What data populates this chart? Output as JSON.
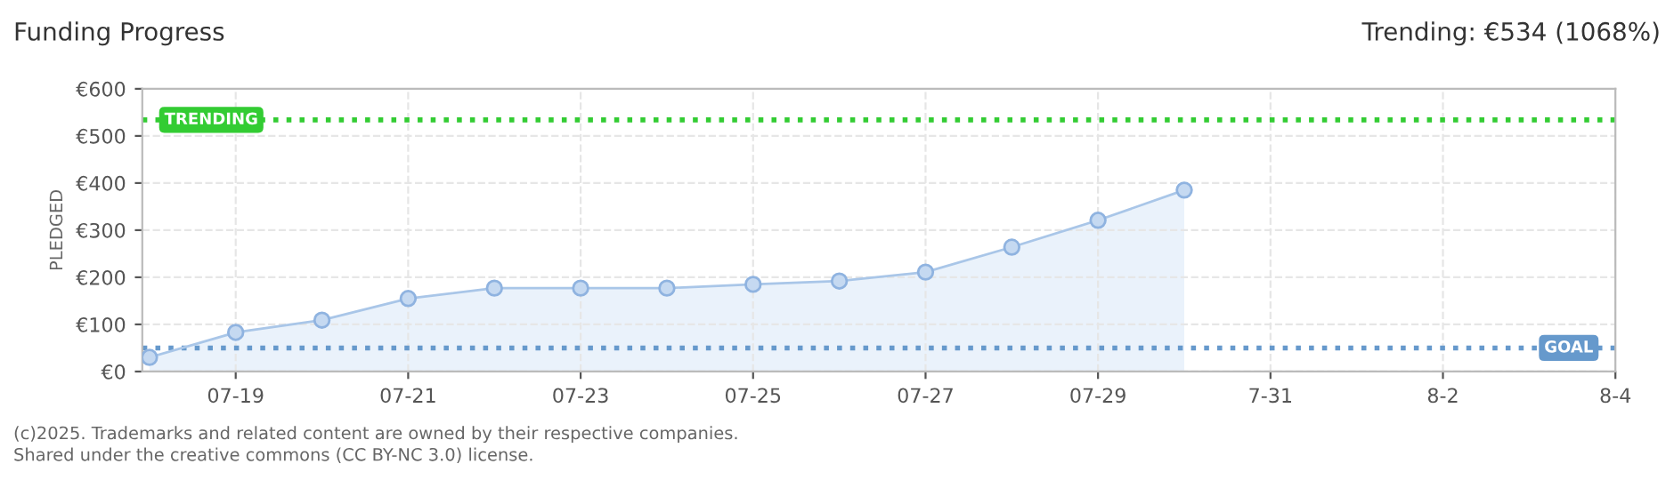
{
  "chart_data": {
    "type": "area",
    "title": "Funding Progress",
    "ylabel": "PLEDGED",
    "annotations": [
      "Trending: €534 (1068%)",
      "(c)2025. Trademarks and related content are owned by their respective companies.",
      "Shared under the creative commons (CC BY-NC 3.0) license."
    ],
    "x": [
      "2025-07-18",
      "2025-07-19",
      "2025-07-20",
      "2025-07-21",
      "2025-07-22",
      "2025-07-23",
      "2025-07-24",
      "2025-07-25",
      "2025-07-26",
      "2025-07-27",
      "2025-07-28",
      "2025-07-29",
      "2025-07-30"
    ],
    "series": [
      {
        "color": "#a9c6e8",
        "values": [
          30,
          83,
          109,
          155,
          177,
          177,
          177,
          185,
          192,
          211,
          264,
          321,
          385
        ]
      }
    ],
    "xlim": [
      "2025-07-17T22:00",
      "2025-08-04"
    ],
    "xticks": [
      {
        "value": "2025-07-19",
        "label": "07-19"
      },
      {
        "value": "2025-07-21",
        "label": "07-21"
      },
      {
        "value": "2025-07-23",
        "label": "07-23"
      },
      {
        "value": "2025-07-25",
        "label": "07-25"
      },
      {
        "value": "2025-07-27",
        "label": "07-27"
      },
      {
        "value": "2025-07-29",
        "label": "07-29"
      },
      {
        "value": "2025-07-31",
        "label": "7-31"
      },
      {
        "value": "2025-08-02",
        "label": "8-2"
      },
      {
        "value": "2025-08-04",
        "label": "8-4"
      }
    ],
    "ylim": [
      0,
      600
    ],
    "yticks": [
      {
        "value": 0,
        "label": "€0"
      },
      {
        "value": 100,
        "label": "€100"
      },
      {
        "value": 200,
        "label": "€200"
      },
      {
        "value": 300,
        "label": "€300"
      },
      {
        "value": 400,
        "label": "€400"
      },
      {
        "value": 500,
        "label": "€500"
      },
      {
        "value": 600,
        "label": "€600"
      }
    ],
    "ref_lines": [
      {
        "axis": "y",
        "value": 534,
        "label": "TRENDING",
        "color": "#33cc33",
        "line_style": "dotted"
      },
      {
        "axis": "y",
        "value": 50,
        "label": "GOAL",
        "color": "#6699cc",
        "line_style": "dotted"
      }
    ],
    "grid": true,
    "marker": "circle",
    "line_style": "solid"
  }
}
